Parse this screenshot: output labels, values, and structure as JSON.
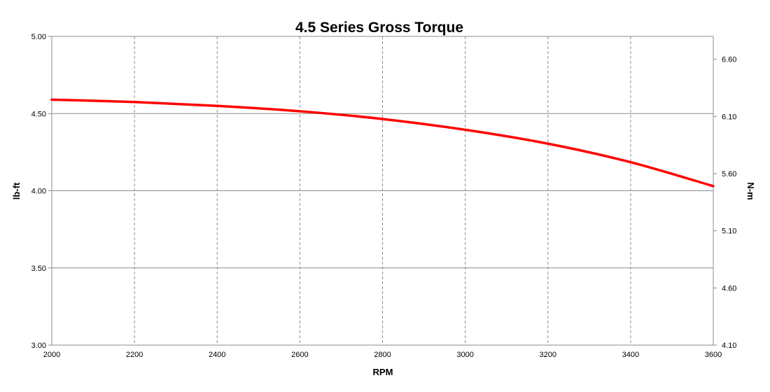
{
  "chart_data": {
    "type": "line",
    "title": "4.5 Series Gross Torque",
    "xlabel": "RPM",
    "ylabel": "lb-ft",
    "y2label": "N-m",
    "xlim": [
      2000,
      3600
    ],
    "ylim": [
      3.0,
      5.0
    ],
    "y2lim": [
      4.1,
      6.8
    ],
    "x_ticks": [
      "2000",
      "2200",
      "2400",
      "2600",
      "2800",
      "3000",
      "3200",
      "3400",
      "3600"
    ],
    "y_ticks": [
      "3.00",
      "3.50",
      "4.00",
      "4.50",
      "5.00"
    ],
    "y2_ticks": [
      "4.10",
      "4.60",
      "5.10",
      "5.60",
      "6.10",
      "6.60"
    ],
    "x_grid": "dashed",
    "y_grid": "solid",
    "series": [
      {
        "color": "#ff0000",
        "x": [
          2000,
          2200,
          2400,
          2600,
          2800,
          3000,
          3200,
          3400,
          3600
        ],
        "y": [
          4.59,
          4.575,
          4.55,
          4.515,
          4.465,
          4.395,
          4.305,
          4.185,
          4.03
        ]
      }
    ]
  }
}
